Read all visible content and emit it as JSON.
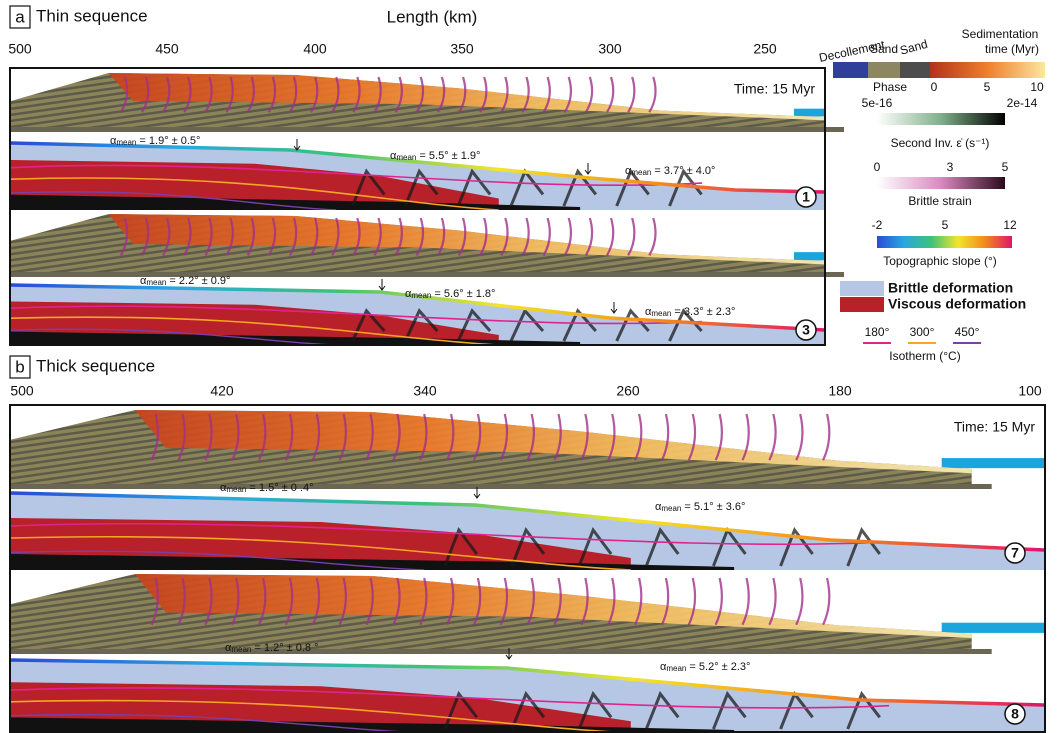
{
  "panel_a": {
    "label": "a",
    "title": "Thin sequence",
    "axis_title": "Length (km)",
    "ticks": [
      500,
      450,
      400,
      350,
      300,
      250
    ],
    "time": "Time: 15 Myr",
    "models": [
      {
        "number": "1",
        "slopes": [
          {
            "symbol": "α",
            "sub": "mean",
            "text": " = 1.9° ± 0.5°"
          },
          {
            "symbol": "α",
            "sub": "mean",
            "text": " = 5.5° ± 1.9°"
          },
          {
            "symbol": "α",
            "sub": "mean",
            "text": " = 3.7° ± 4.0°"
          }
        ]
      },
      {
        "number": "3",
        "slopes": [
          {
            "symbol": "α",
            "sub": "mean",
            "text": " = 2.2° ± 0.9°"
          },
          {
            "symbol": "α",
            "sub": "mean",
            "text": " = 5.6° ± 1.8°"
          },
          {
            "symbol": "α",
            "sub": "mean",
            "text": " = 3.3° ± 2.3°"
          }
        ]
      }
    ]
  },
  "panel_b": {
    "label": "b",
    "title": "Thick sequence",
    "ticks": [
      500,
      420,
      340,
      260,
      180,
      100
    ],
    "time": "Time: 15 Myr",
    "models": [
      {
        "number": "7",
        "slopes": [
          {
            "symbol": "α",
            "sub": "mean",
            "text": " = 1.5° ± 0 .4°"
          },
          {
            "symbol": "α",
            "sub": "mean",
            "text": " = 5.1° ± 3.6°"
          }
        ]
      },
      {
        "number": "8",
        "slopes": [
          {
            "symbol": "α",
            "sub": "mean",
            "text": " = 1.2° ± 0.8 °"
          },
          {
            "symbol": "α",
            "sub": "mean",
            "text": " = 5.2° ± 2.3°"
          }
        ]
      }
    ]
  },
  "legend": {
    "phase": {
      "names": [
        "Decollement",
        "Sand",
        "Sand"
      ],
      "title": "Phase",
      "sed_title": [
        "Sedimentation",
        "time (Myr)"
      ],
      "sed_ticks": [
        0,
        5,
        10
      ]
    },
    "strain_rate": {
      "min": "5e-16",
      "max": "2e-14",
      "title": "Second Inv. ε̇ (s⁻¹)"
    },
    "brittle_strain": {
      "ticks": [
        0,
        3,
        5
      ],
      "title": "Brittle strain"
    },
    "slope": {
      "ticks": [
        -2,
        5,
        12
      ],
      "title": "Topographic slope (°)"
    },
    "deformation": [
      "Brittle deformation",
      "Viscous deformation"
    ],
    "isotherms": {
      "labels": [
        "180°",
        "300°",
        "450°"
      ],
      "colors": [
        "#e0248f",
        "#f5a623",
        "#7b3fa8"
      ],
      "title": "Isotherm (°C)"
    }
  }
}
